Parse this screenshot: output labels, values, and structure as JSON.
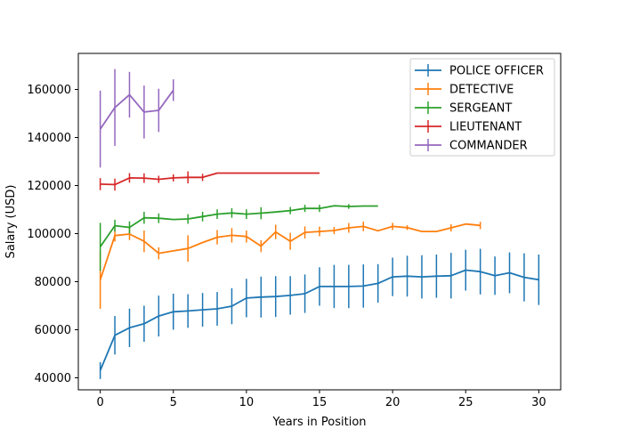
{
  "chart_data": {
    "type": "line",
    "title": "",
    "xlabel": "Years in Position",
    "ylabel": "Salary (USD)",
    "xlim": [
      -1.5,
      31.5
    ],
    "ylim": [
      35000,
      175000
    ],
    "xticks": [
      0,
      5,
      10,
      15,
      20,
      25,
      30
    ],
    "yticks": [
      40000,
      60000,
      80000,
      100000,
      120000,
      140000,
      160000
    ],
    "grid": false,
    "legend_position": "top-right",
    "series": [
      {
        "name": "POLICE OFFICER",
        "color": "#1f77b4",
        "x": [
          0,
          1,
          2,
          3,
          4,
          5,
          6,
          7,
          8,
          9,
          10,
          11,
          12,
          13,
          14,
          15,
          16,
          17,
          18,
          19,
          20,
          21,
          22,
          23,
          24,
          25,
          26,
          27,
          28,
          29,
          30
        ],
        "y": [
          43000,
          57700,
          60800,
          62500,
          65700,
          67500,
          67800,
          68300,
          68700,
          69800,
          73200,
          73600,
          73800,
          74300,
          75000,
          78000,
          78000,
          78000,
          78200,
          79300,
          82000,
          82300,
          82000,
          82300,
          82500,
          84800,
          84200,
          82500,
          83700,
          81800,
          80800
        ],
        "err": [
          3500,
          8000,
          8000,
          7500,
          8500,
          7500,
          7000,
          7000,
          7000,
          7500,
          8000,
          8500,
          8500,
          8000,
          8000,
          8000,
          9000,
          9000,
          9000,
          8000,
          8000,
          8500,
          9000,
          9000,
          9500,
          8500,
          9500,
          8000,
          8500,
          10000,
          10500
        ]
      },
      {
        "name": "DETECTIVE",
        "color": "#ff7f0e",
        "x": [
          0,
          1,
          2,
          3,
          4,
          5,
          6,
          7,
          8,
          9,
          10,
          11,
          12,
          13,
          14,
          15,
          16,
          17,
          18,
          19,
          20,
          21,
          22,
          23,
          24,
          25,
          26
        ],
        "y": [
          80700,
          99200,
          99800,
          96800,
          91800,
          92800,
          93800,
          96300,
          98500,
          99300,
          98800,
          94800,
          100700,
          96800,
          100500,
          100900,
          101300,
          102400,
          103000,
          101200,
          103000,
          102500,
          100900,
          100900,
          102400,
          104000,
          103400
        ],
        "err": [
          12000,
          2500,
          2500,
          4500,
          2500,
          0,
          5500,
          0,
          3000,
          3000,
          2500,
          2500,
          3000,
          3500,
          2500,
          2000,
          1500,
          2000,
          2000,
          0,
          1500,
          1000,
          0,
          0,
          1500,
          0,
          1500
        ]
      },
      {
        "name": "SERGEANT",
        "color": "#2ca02c",
        "x": [
          0,
          1,
          2,
          3,
          4,
          5,
          6,
          7,
          8,
          9,
          10,
          11,
          12,
          13,
          14,
          15,
          16,
          17,
          18,
          19
        ],
        "y": [
          94500,
          103300,
          102600,
          106600,
          106400,
          105900,
          106100,
          107100,
          108100,
          108600,
          108100,
          108500,
          109000,
          109600,
          110500,
          110500,
          111600,
          111300,
          111500,
          111500
        ],
        "err": [
          10000,
          2500,
          2500,
          2500,
          2000,
          0,
          2000,
          2000,
          2000,
          2000,
          2000,
          2500,
          0,
          1500,
          1500,
          1500,
          0,
          1000,
          0,
          0
        ]
      },
      {
        "name": "LIEUTENANT",
        "color": "#d62728",
        "x": [
          0,
          1,
          2,
          3,
          4,
          5,
          6,
          7,
          8,
          9,
          10,
          11,
          12,
          13,
          14,
          15
        ],
        "y": [
          120600,
          120400,
          123200,
          123100,
          122600,
          123200,
          123400,
          123400,
          125200,
          125200,
          125200,
          125200,
          125200,
          125200,
          125200,
          125200
        ],
        "err": [
          2500,
          2500,
          2000,
          2000,
          1500,
          1500,
          2500,
          1500,
          0,
          0,
          0,
          0,
          0,
          0,
          0,
          0
        ]
      },
      {
        "name": "COMMANDER",
        "color": "#9467bd",
        "x": [
          0,
          1,
          2,
          3,
          4,
          5
        ],
        "y": [
          143500,
          152500,
          157800,
          150600,
          151300,
          159700
        ],
        "err": [
          16000,
          16000,
          9500,
          11000,
          9000,
          4500
        ]
      }
    ]
  }
}
